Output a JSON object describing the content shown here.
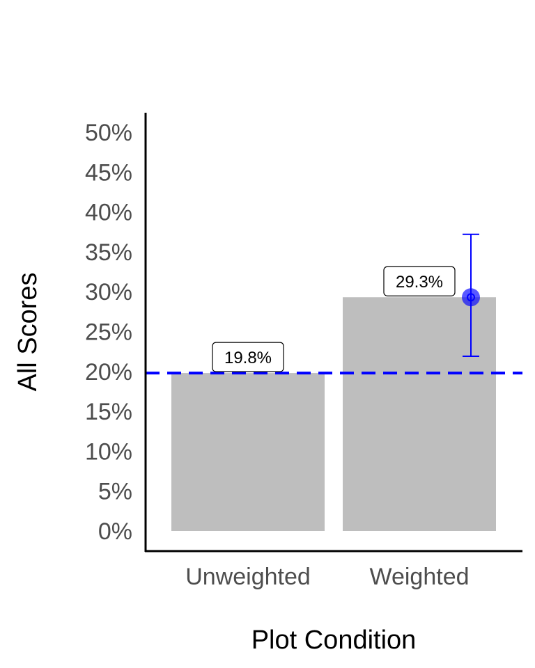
{
  "chart_data": {
    "type": "bar",
    "categories": [
      "Unweighted",
      "Weighted"
    ],
    "values": [
      19.8,
      29.3
    ],
    "value_labels": [
      "19.8%",
      "29.3%"
    ],
    "xlabel": "Plot Condition",
    "ylabel": "All Scores",
    "ylim": [
      0,
      50
    ],
    "yticks": [
      0,
      5,
      10,
      15,
      20,
      25,
      30,
      35,
      40,
      45,
      50
    ],
    "ytick_labels": [
      "0%",
      "5%",
      "10%",
      "15%",
      "20%",
      "25%",
      "30%",
      "35%",
      "40%",
      "45%",
      "50%"
    ],
    "reference_line": {
      "value": 19.8,
      "style": "dashed",
      "color": "#0000ff"
    },
    "point_estimate": {
      "category": "Weighted",
      "value": 29.3,
      "lower": 21.9,
      "upper": 37.2,
      "color": "#0000ff"
    },
    "bar_color": "#bebebe",
    "grid": false,
    "legend": "none"
  }
}
